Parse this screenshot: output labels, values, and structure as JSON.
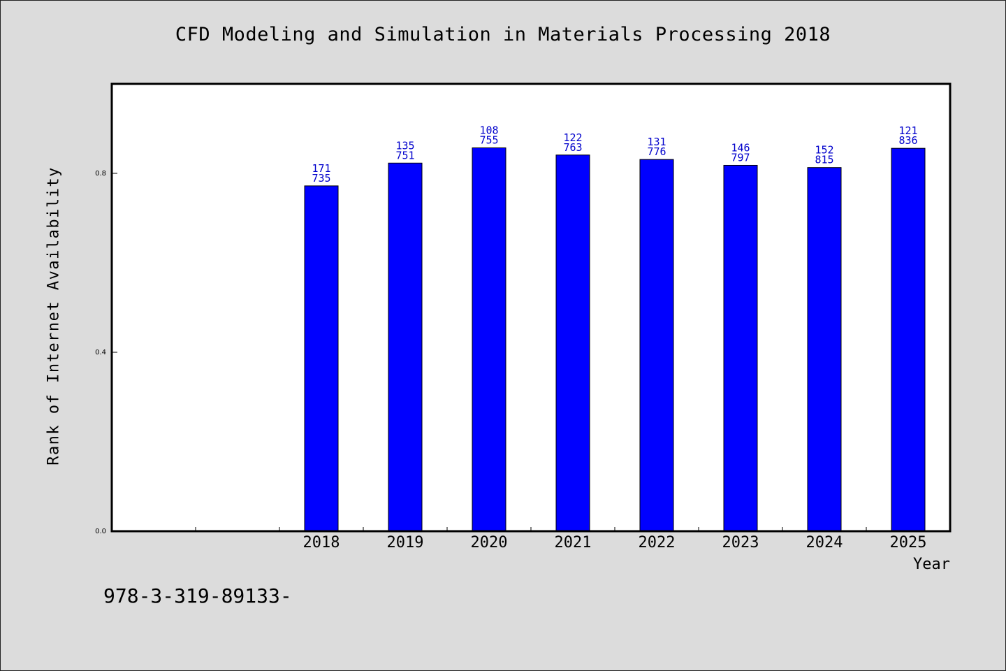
{
  "page": {
    "background": "#dcdcdc",
    "footer_code": "978-3-319-89133-"
  },
  "chart_data": {
    "type": "bar",
    "title": "CFD Modeling and Simulation in Materials Processing 2018",
    "xlabel": "Year",
    "ylabel": "Rank of Internet Availability",
    "ylim": [
      0,
      1.0
    ],
    "y_ticks": [
      "0.0",
      "0.4",
      "0.8"
    ],
    "categories": [
      "",
      "",
      "2018",
      "2019",
      "2020",
      "2021",
      "2022",
      "2023",
      "2024",
      "2025"
    ],
    "values": [
      null,
      null,
      0.772,
      0.823,
      0.857,
      0.841,
      0.831,
      0.818,
      0.813,
      0.856
    ],
    "bar_labels": [
      null,
      null,
      [
        "171",
        "735"
      ],
      [
        "135",
        "751"
      ],
      [
        "108",
        "755"
      ],
      [
        "122",
        "763"
      ],
      [
        "131",
        "776"
      ],
      [
        "146",
        "797"
      ],
      [
        "152",
        "815"
      ],
      [
        "121",
        "836"
      ]
    ],
    "grid": false,
    "legend": "none",
    "colors": {
      "bar": "#0000ff",
      "bar_label": "#0000cc",
      "plot_bg": "#ffffff",
      "axis": "#000000"
    }
  }
}
